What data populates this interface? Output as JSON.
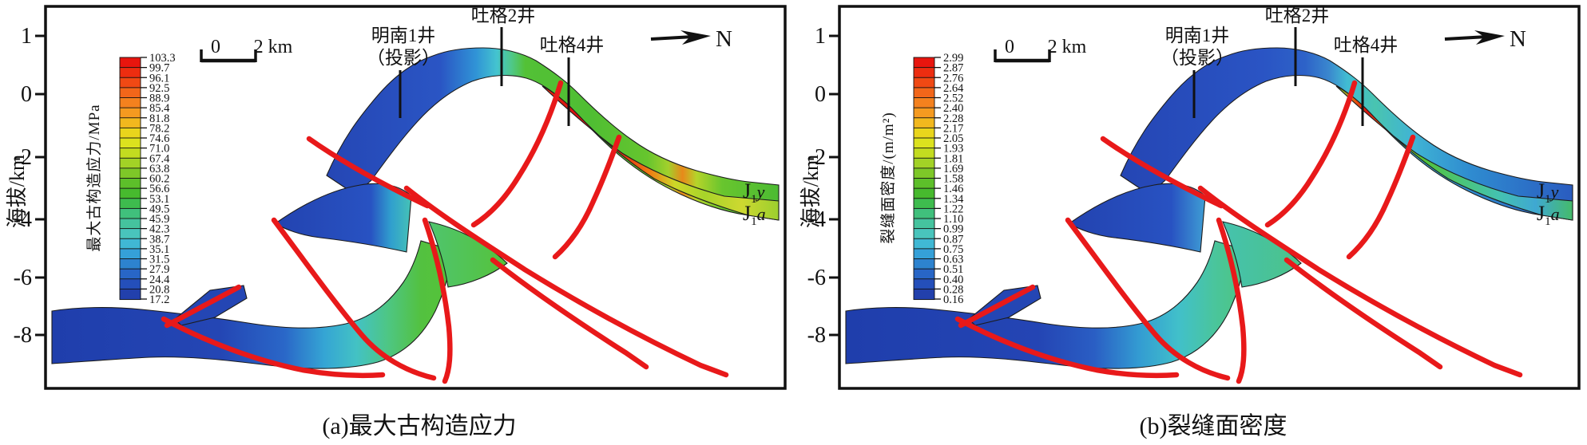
{
  "figure": {
    "background": "#ffffff"
  },
  "colors": {
    "fault": "#e8191a",
    "axis": "#111111",
    "well_line": "#111111",
    "strip_outline": "#1c1c1c"
  },
  "colorbar_colors": [
    "#e8150e",
    "#ed2d10",
    "#f04914",
    "#f2661a",
    "#f4811e",
    "#f59a20",
    "#f2b81e",
    "#e9d51c",
    "#dce21e",
    "#c3dc20",
    "#a2d226",
    "#7ec828",
    "#5dbf2a",
    "#47ba2e",
    "#3ebc4e",
    "#40c07c",
    "#45c39e",
    "#49c4bc",
    "#40b8d4",
    "#35a0d8",
    "#2d83cf",
    "#2866c6",
    "#244fba",
    "#2240ac"
  ],
  "panels": [
    {
      "id": "a",
      "caption": "(a)最大古构造应力",
      "y_axis": {
        "title": "海拔/km",
        "ticks": [
          "1",
          "0",
          "-2",
          "-4",
          "-6",
          "-8"
        ]
      },
      "scale_bar": {
        "left_label": "0",
        "right_label": "2 km"
      },
      "north_label": "N",
      "wells": [
        {
          "label": "吐格2井"
        },
        {
          "label": "明南1井",
          "label2": "（投影）"
        },
        {
          "label": "吐格4井"
        }
      ],
      "strata_labels": [
        {
          "base": "J",
          "sub": "1",
          "suffix": "y"
        },
        {
          "base": "J",
          "sub": "1",
          "suffix": "a"
        }
      ],
      "colorbar": {
        "title": "最大古构造应力/MPa",
        "values": [
          "103.3",
          "99.7",
          "96.1",
          "92.5",
          "88.9",
          "85.4",
          "81.8",
          "78.2",
          "74.6",
          "71.0",
          "67.4",
          "63.8",
          "60.2",
          "56.6",
          "53.1",
          "49.5",
          "45.9",
          "42.3",
          "38.7",
          "35.1",
          "31.5",
          "27.9",
          "24.4",
          "20.8",
          "17.2"
        ]
      },
      "gradients": {
        "main": [
          [
            0,
            "#2444b2"
          ],
          [
            0.28,
            "#2a55c4"
          ],
          [
            0.355,
            "#3093d6"
          ],
          [
            0.4,
            "#44c4cf"
          ],
          [
            0.43,
            "#4fc88c"
          ],
          [
            0.46,
            "#53c136"
          ],
          [
            0.6,
            "#4fbe33"
          ],
          [
            0.72,
            "#66c52e"
          ],
          [
            0.765,
            "#a2d02c"
          ],
          [
            0.795,
            "#e8891a"
          ],
          [
            0.825,
            "#b5d42a"
          ],
          [
            0.88,
            "#68c52e"
          ],
          [
            1,
            "#4cbb33"
          ]
        ],
        "sliver": [
          [
            0,
            "#e8340f"
          ],
          [
            0.18,
            "#d81110"
          ],
          [
            0.38,
            "#e33910"
          ],
          [
            0.48,
            "#ef7e14"
          ],
          [
            0.58,
            "#cdd828"
          ],
          [
            0.7,
            "#a8d42a"
          ],
          [
            0.85,
            "#cdd830"
          ],
          [
            1,
            "#9ccf2e"
          ]
        ],
        "middle": [
          [
            0,
            "#2343b0"
          ],
          [
            0.7,
            "#2852c2"
          ],
          [
            0.85,
            "#309fce"
          ],
          [
            1,
            "#46c3b6"
          ]
        ],
        "bottom": [
          [
            0,
            "#1f3eac"
          ],
          [
            0.42,
            "#2446b4"
          ],
          [
            0.58,
            "#2a67c8"
          ],
          [
            0.68,
            "#35a5d4"
          ],
          [
            0.76,
            "#43c2c4"
          ],
          [
            0.84,
            "#4ec682"
          ],
          [
            0.92,
            "#53c140"
          ],
          [
            1,
            "#55c337"
          ]
        ],
        "riser": [
          [
            0,
            "#4fc56e"
          ],
          [
            1,
            "#55c23a"
          ]
        ],
        "rhomb": [
          [
            0,
            "#2446b4"
          ],
          [
            1,
            "#2446b4"
          ]
        ]
      }
    },
    {
      "id": "b",
      "caption": "(b)裂缝面密度",
      "y_axis": {
        "title": "海拔/km",
        "ticks": [
          "1",
          "0",
          "-2",
          "-4",
          "-6",
          "-8"
        ]
      },
      "scale_bar": {
        "left_label": "0",
        "right_label": "2 km"
      },
      "north_label": "N",
      "wells": [
        {
          "label": "吐格2井"
        },
        {
          "label": "明南1井",
          "label2": "（投影）"
        },
        {
          "label": "吐格4井"
        }
      ],
      "strata_labels": [
        {
          "base": "J",
          "sub": "1",
          "suffix": "y"
        },
        {
          "base": "J",
          "sub": "1",
          "suffix": "a"
        }
      ],
      "colorbar": {
        "title": "裂缝面密度/(m/m²)",
        "values": [
          "2.99",
          "2.87",
          "2.76",
          "2.64",
          "2.52",
          "2.40",
          "2.28",
          "2.17",
          "2.05",
          "1.93",
          "1.81",
          "1.69",
          "1.58",
          "1.46",
          "1.34",
          "1.22",
          "1.10",
          "0.99",
          "0.87",
          "0.75",
          "0.63",
          "0.51",
          "0.40",
          "0.28",
          "0.16"
        ]
      },
      "gradients": {
        "main": [
          [
            0,
            "#2444b2"
          ],
          [
            0.34,
            "#2a54c4"
          ],
          [
            0.43,
            "#2d62c8"
          ],
          [
            0.48,
            "#3a86ce"
          ],
          [
            0.52,
            "#41bcd2"
          ],
          [
            0.58,
            "#49c4b0"
          ],
          [
            0.66,
            "#40b4d4"
          ],
          [
            0.78,
            "#2f8cd0"
          ],
          [
            1,
            "#2a5cc0"
          ]
        ],
        "sliver": [
          [
            0,
            "#49c48e"
          ],
          [
            0.06,
            "#7aca30"
          ],
          [
            0.12,
            "#e8590f"
          ],
          [
            0.17,
            "#d41410"
          ],
          [
            0.24,
            "#e85c10"
          ],
          [
            0.3,
            "#8cca2c"
          ],
          [
            0.4,
            "#52c13a"
          ],
          [
            0.55,
            "#4ac478"
          ],
          [
            0.7,
            "#44c2b0"
          ],
          [
            0.85,
            "#3fa8d2"
          ],
          [
            1,
            "#45bb6a"
          ]
        ],
        "middle": [
          [
            0,
            "#2343b0"
          ],
          [
            0.75,
            "#2852c2"
          ],
          [
            1,
            "#3f9ed4"
          ]
        ],
        "bottom": [
          [
            0,
            "#1f3eac"
          ],
          [
            0.48,
            "#2445b4"
          ],
          [
            0.62,
            "#2a5ec4"
          ],
          [
            0.73,
            "#339bd2"
          ],
          [
            0.83,
            "#41c0ca"
          ],
          [
            0.92,
            "#4ac59c"
          ],
          [
            1,
            "#4ec57e"
          ]
        ],
        "riser": [
          [
            0,
            "#45c2ae"
          ],
          [
            1,
            "#4cc388"
          ]
        ],
        "rhomb": [
          [
            0,
            "#2446b4"
          ],
          [
            1,
            "#2446b4"
          ]
        ]
      }
    }
  ],
  "chart_data": [
    {
      "type": "heatmap",
      "title": "(a)最大古构造应力",
      "ylabel": "海拔/km",
      "y_ticks": [
        1,
        0,
        -2,
        -4,
        -6,
        -8
      ],
      "colorbar_label": "最大古构造应力/MPa",
      "colorbar_ticks": [
        103.3,
        99.7,
        96.1,
        92.5,
        88.9,
        85.4,
        81.8,
        78.2,
        74.6,
        71.0,
        67.4,
        63.8,
        60.2,
        56.6,
        53.1,
        49.5,
        45.9,
        42.3,
        38.7,
        35.1,
        31.5,
        27.9,
        24.4,
        20.8,
        17.2
      ],
      "value_range": [
        17.2,
        103.3
      ],
      "wells": [
        "明南1井（投影）",
        "吐格2井",
        "吐格4井"
      ],
      "strata": [
        "J1y",
        "J1a"
      ],
      "scale_bar_km": [
        0,
        2
      ],
      "orientation": "N",
      "legend_position": "left",
      "notes": "Cross-section of folded strata cut by red fault lines; stress highest (red, ~100 MPa) on lower limb near 吐格4井, lowest (blue, ~17-25 MPa) in deep flat-lying strata."
    },
    {
      "type": "heatmap",
      "title": "(b)裂缝面密度",
      "ylabel": "海拔/km",
      "y_ticks": [
        1,
        0,
        -2,
        -4,
        -6,
        -8
      ],
      "colorbar_label": "裂缝面密度/(m/m²)",
      "colorbar_ticks": [
        2.99,
        2.87,
        2.76,
        2.64,
        2.52,
        2.4,
        2.28,
        2.17,
        2.05,
        1.93,
        1.81,
        1.69,
        1.58,
        1.46,
        1.34,
        1.22,
        1.1,
        0.99,
        0.87,
        0.75,
        0.63,
        0.51,
        0.4,
        0.28,
        0.16
      ],
      "value_range": [
        0.16,
        2.99
      ],
      "wells": [
        "明南1井（投影）",
        "吐格2井",
        "吐格4井"
      ],
      "strata": [
        "J1y",
        "J1a"
      ],
      "scale_bar_km": [
        0,
        2
      ],
      "orientation": "N",
      "legend_position": "left",
      "notes": "Same cross-section; fracture density peaks (red, ~3 m/m2) in a small zone below the anticline crest near 吐格4井, elsewhere mostly blue (~0.2-0.6 m/m2)."
    }
  ]
}
